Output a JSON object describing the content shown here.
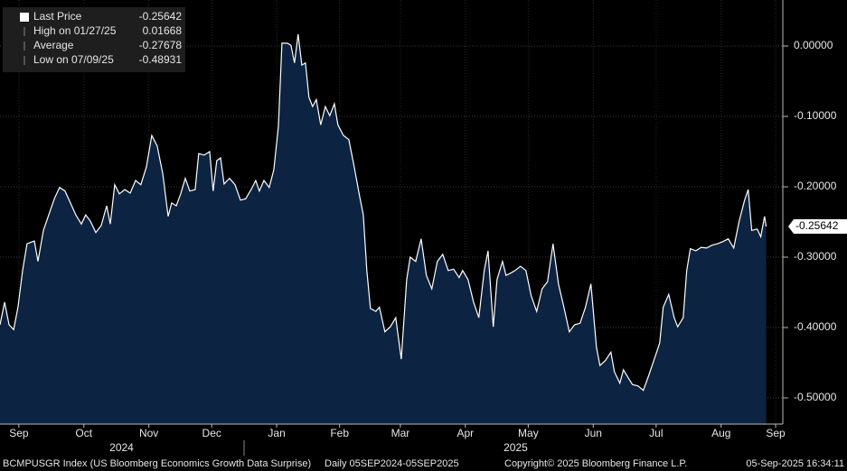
{
  "chart_data": {
    "type": "area",
    "line_color": "#ffffff",
    "fill_color": "#0c2341",
    "grid": true,
    "xlim": [
      0,
      373
    ],
    "ylim": [
      -0.5372,
      0.0654
    ],
    "yticks": [
      {
        "value": 0,
        "label": "0.00000"
      },
      {
        "value": -0.1,
        "label": "-0.10000"
      },
      {
        "value": -0.2,
        "label": "-0.20000"
      },
      {
        "value": -0.3,
        "label": "-0.30000"
      },
      {
        "value": -0.4,
        "label": "-0.40000"
      },
      {
        "value": -0.5,
        "label": "-0.50000"
      }
    ],
    "xticks": [
      {
        "value": 9,
        "label": "Sep"
      },
      {
        "value": 40,
        "label": "Oct"
      },
      {
        "value": 71,
        "label": "Nov"
      },
      {
        "value": 101,
        "label": "Dec"
      },
      {
        "value": 132,
        "label": "Jan"
      },
      {
        "value": 162,
        "label": "Feb"
      },
      {
        "value": 191,
        "label": "Mar"
      },
      {
        "value": 222,
        "label": "Apr"
      },
      {
        "value": 252,
        "label": "May"
      },
      {
        "value": 283,
        "label": "Jun"
      },
      {
        "value": 313,
        "label": "Jul"
      },
      {
        "value": 344,
        "label": "Aug"
      },
      {
        "value": 370,
        "label": "Sep"
      }
    ],
    "year_labels": [
      {
        "value": 58,
        "label": "2024"
      },
      {
        "value": 246,
        "label": "2025"
      }
    ],
    "legend": [
      {
        "label": "Last Price",
        "value": -0.25642
      },
      {
        "label": "High on 01/27/25",
        "value": 0.01668
      },
      {
        "label": "Average",
        "value": -0.27678
      },
      {
        "label": "Low on 07/09/25",
        "value": -0.48931
      }
    ],
    "x": [
      0,
      2.2,
      4.3,
      6.5,
      8.6,
      10.8,
      12.9,
      16.4,
      18.1,
      20.7,
      23.7,
      25.9,
      28.4,
      31.0,
      33.6,
      36.2,
      38.8,
      40.9,
      43.1,
      45.7,
      48.3,
      50.9,
      52.6,
      54.7,
      56.9,
      59.5,
      62.1,
      64.7,
      67.2,
      69.8,
      72.4,
      75.0,
      77.6,
      80.2,
      81.9,
      84.1,
      86.2,
      88.4,
      90.5,
      93.1,
      94.8,
      97.4,
      100.0,
      101.7,
      103.4,
      105.2,
      106.9,
      109.5,
      112.1,
      114.7,
      117.2,
      119.8,
      122.0,
      123.7,
      125.9,
      128.4,
      130.6,
      132.8,
      134.5,
      137.1,
      138.8,
      140.5,
      142.2,
      144.0,
      145.7,
      147.4,
      149.1,
      150.9,
      153.0,
      155.2,
      157.3,
      159.5,
      161.2,
      163.8,
      166.4,
      169.0,
      171.6,
      173.3,
      175.0,
      176.7,
      179.3,
      181.0,
      183.6,
      186.2,
      188.8,
      191.4,
      194.0,
      195.7,
      198.3,
      200.9,
      203.4,
      206.0,
      208.6,
      211.2,
      213.8,
      216.4,
      219.0,
      220.7,
      223.3,
      225.9,
      228.4,
      231.0,
      232.8,
      235.3,
      237.1,
      239.7,
      241.4,
      244.0,
      245.7,
      248.3,
      250.9,
      253.4,
      256.0,
      258.6,
      261.2,
      263.8,
      266.4,
      269.0,
      271.6,
      274.1,
      276.7,
      279.3,
      281.9,
      284.5,
      286.2,
      288.8,
      291.4,
      293.1,
      295.7,
      297.4,
      300.0,
      301.7,
      304.3,
      306.9,
      309.5,
      312.1,
      314.7,
      316.4,
      319.0,
      321.6,
      323.3,
      325.9,
      327.6,
      329.3,
      331.9,
      334.5,
      337.1,
      339.7,
      342.2,
      344.8,
      347.4,
      350.0,
      352.6,
      355.2,
      356.9,
      358.6,
      361.2,
      362.9,
      364.7,
      365.5
    ],
    "values": [
      -0.396,
      -0.364,
      -0.396,
      -0.403,
      -0.371,
      -0.319,
      -0.281,
      -0.277,
      -0.306,
      -0.262,
      -0.236,
      -0.217,
      -0.201,
      -0.206,
      -0.223,
      -0.24,
      -0.253,
      -0.24,
      -0.249,
      -0.265,
      -0.255,
      -0.227,
      -0.253,
      -0.197,
      -0.21,
      -0.204,
      -0.209,
      -0.191,
      -0.197,
      -0.172,
      -0.127,
      -0.142,
      -0.181,
      -0.242,
      -0.223,
      -0.227,
      -0.21,
      -0.188,
      -0.206,
      -0.204,
      -0.153,
      -0.155,
      -0.15,
      -0.206,
      -0.163,
      -0.159,
      -0.196,
      -0.188,
      -0.197,
      -0.219,
      -0.217,
      -0.204,
      -0.191,
      -0.206,
      -0.191,
      -0.201,
      -0.176,
      -0.114,
      0.004,
      0.004,
      0.001,
      -0.024,
      0.01668,
      -0.027,
      -0.024,
      -0.073,
      -0.086,
      -0.076,
      -0.112,
      -0.086,
      -0.099,
      -0.082,
      -0.112,
      -0.127,
      -0.133,
      -0.172,
      -0.214,
      -0.24,
      -0.319,
      -0.373,
      -0.377,
      -0.371,
      -0.406,
      -0.399,
      -0.386,
      -0.445,
      -0.332,
      -0.3,
      -0.306,
      -0.274,
      -0.326,
      -0.345,
      -0.306,
      -0.296,
      -0.319,
      -0.317,
      -0.329,
      -0.319,
      -0.332,
      -0.364,
      -0.386,
      -0.319,
      -0.291,
      -0.399,
      -0.332,
      -0.306,
      -0.326,
      -0.322,
      -0.319,
      -0.313,
      -0.319,
      -0.355,
      -0.377,
      -0.345,
      -0.335,
      -0.281,
      -0.338,
      -0.371,
      -0.406,
      -0.396,
      -0.394,
      -0.371,
      -0.338,
      -0.428,
      -0.454,
      -0.447,
      -0.435,
      -0.463,
      -0.479,
      -0.46,
      -0.473,
      -0.481,
      -0.483,
      -0.48931,
      -0.468,
      -0.445,
      -0.422,
      -0.371,
      -0.353,
      -0.386,
      -0.399,
      -0.386,
      -0.319,
      -0.288,
      -0.291,
      -0.286,
      -0.287,
      -0.283,
      -0.281,
      -0.278,
      -0.274,
      -0.287,
      -0.249,
      -0.219,
      -0.204,
      -0.262,
      -0.26,
      -0.271,
      -0.242,
      -0.25642
    ],
    "footer": {
      "description": "BCMPUSGR Index (US Bloomberg Economics Growth Data Surprise)",
      "period": "Daily 05SEP2024-05SEP2025",
      "copyright": "Copyright© 2025 Bloomberg Finance L.P.",
      "timestamp": "05-Sep-2025 16:34:11"
    }
  }
}
